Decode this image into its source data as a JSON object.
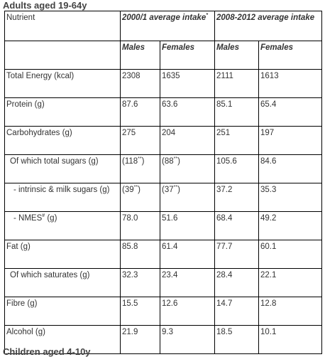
{
  "title": "Adults aged 19-64y",
  "table": {
    "header": [
      [
        "Nutrient",
        {
          "pre": "2000/1 average intake",
          "sup": "*"
        },
        "2008-2012 average intake"
      ],
      [
        "Males",
        "Females",
        "Males",
        "Females"
      ]
    ],
    "rows": [
      [
        "Total Energy (kcal)",
        "2308",
        "1635",
        "2111",
        "1613"
      ],
      [
        "Protein (g)",
        "87.6",
        "63.6",
        "85.1",
        "65.4"
      ],
      [
        "Carbohydrates (g)",
        "275",
        "204",
        "251",
        "197"
      ],
      [
        "Of which total sugars (g)",
        {
          "pre": "(118",
          "sup": "**",
          "post": ")"
        },
        {
          "pre": "(88",
          "sup": "**",
          "post": ")"
        },
        "105.6",
        "84.6"
      ],
      [
        "- intrinsic & milk sugars (g)",
        {
          "pre": "(39",
          "sup": "**",
          "post": ")"
        },
        {
          "pre": "(37",
          "sup": "**",
          "post": ")"
        },
        "37.2",
        "35.3"
      ],
      [
        {
          "pre": "- NMES",
          "sup": "#",
          "post": " (g)"
        },
        "78.0",
        "51.6",
        "68.4",
        "49.2"
      ],
      [
        "Fat (g)",
        "85.8",
        "61.4",
        "77.7",
        "60.1"
      ],
      [
        "Of which saturates (g)",
        "32.3",
        "23.4",
        "28.4",
        "22.1"
      ],
      [
        "Fibre (g)",
        "15.5",
        "12.6",
        "14.7",
        "12.8"
      ],
      [
        "Alcohol (g)",
        "21.9",
        "9.3",
        "18.5",
        "10.1"
      ]
    ]
  },
  "next_title": "Children aged 4-10y"
}
